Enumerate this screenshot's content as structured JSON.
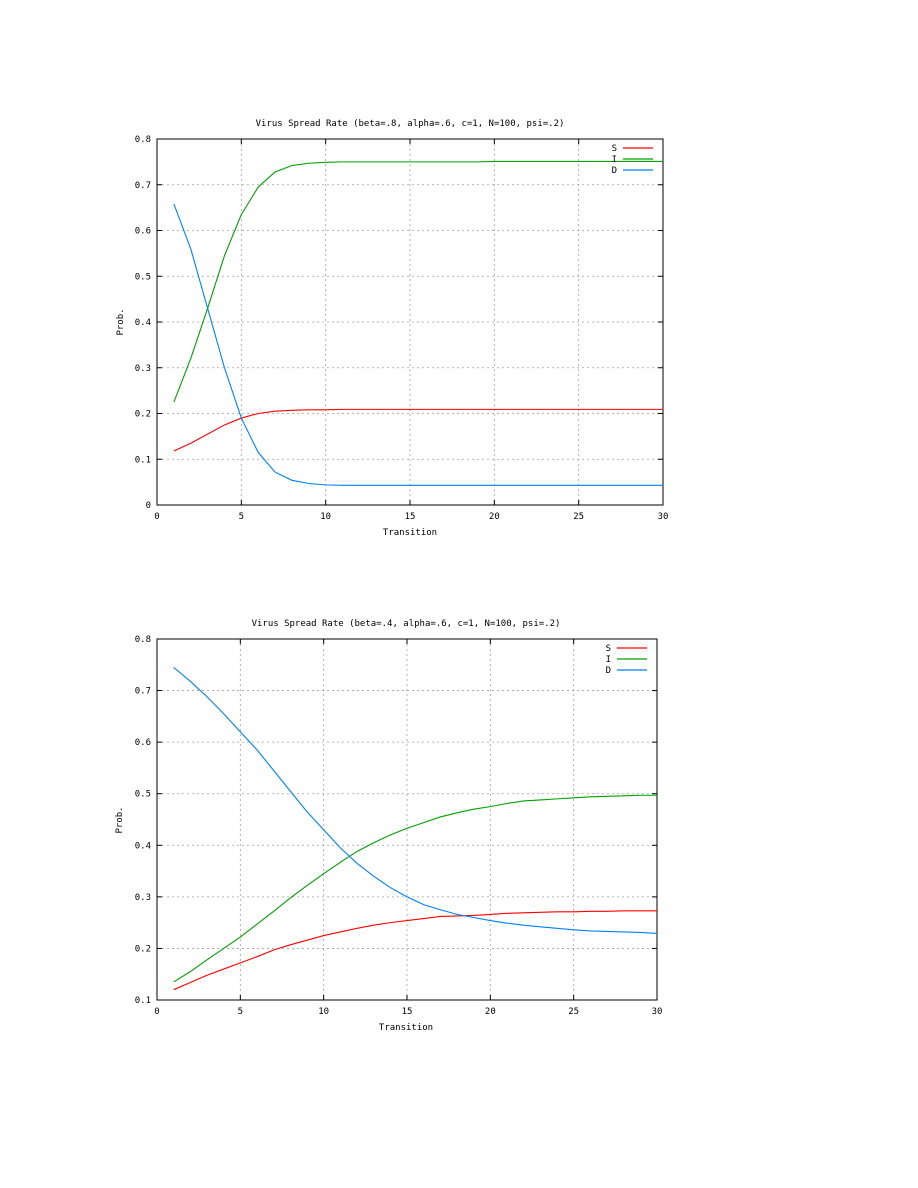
{
  "chart_data": [
    {
      "type": "line",
      "title": "Virus Spread Rate (beta=.8, alpha=.6, c=1, N=100, psi=.2)",
      "xlabel": "Transition",
      "ylabel": "Prob.",
      "xlim": [
        0,
        30
      ],
      "ylim": [
        0,
        0.8
      ],
      "xticks": [
        0,
        5,
        10,
        15,
        20,
        25,
        30
      ],
      "yticks": [
        0,
        0.1,
        0.2,
        0.3,
        0.4,
        0.5,
        0.6,
        0.7,
        0.8
      ],
      "grid": true,
      "legend_position": "top-right",
      "x": [
        1,
        2,
        3,
        4,
        5,
        6,
        7,
        8,
        9,
        10,
        11,
        12,
        13,
        14,
        15,
        16,
        17,
        18,
        19,
        20,
        21,
        22,
        23,
        24,
        25,
        26,
        27,
        28,
        29,
        30
      ],
      "series": [
        {
          "name": "S",
          "color": "#ff0000",
          "values": [
            0.118,
            0.135,
            0.155,
            0.175,
            0.19,
            0.2,
            0.205,
            0.207,
            0.208,
            0.208,
            0.209,
            0.209,
            0.209,
            0.209,
            0.209,
            0.209,
            0.209,
            0.209,
            0.209,
            0.209,
            0.209,
            0.209,
            0.209,
            0.209,
            0.209,
            0.209,
            0.209,
            0.209,
            0.209,
            0.209
          ]
        },
        {
          "name": "I",
          "color": "#00a000",
          "values": [
            0.225,
            0.32,
            0.43,
            0.545,
            0.635,
            0.695,
            0.728,
            0.742,
            0.747,
            0.749,
            0.75,
            0.75,
            0.75,
            0.75,
            0.75,
            0.75,
            0.75,
            0.75,
            0.75,
            0.751,
            0.751,
            0.751,
            0.751,
            0.751,
            0.751,
            0.751,
            0.751,
            0.751,
            0.751,
            0.751
          ]
        },
        {
          "name": "D",
          "color": "#0080ff",
          "values": [
            0.658,
            0.56,
            0.43,
            0.3,
            0.19,
            0.115,
            0.072,
            0.054,
            0.047,
            0.044,
            0.043,
            0.043,
            0.043,
            0.043,
            0.043,
            0.043,
            0.043,
            0.043,
            0.043,
            0.043,
            0.043,
            0.043,
            0.043,
            0.043,
            0.043,
            0.043,
            0.043,
            0.043,
            0.043,
            0.043
          ]
        }
      ]
    },
    {
      "type": "line",
      "title": "Virus Spread Rate (beta=.4, alpha=.6, c=1, N=100, psi=.2)",
      "xlabel": "Transition",
      "ylabel": "Prob.",
      "xlim": [
        0,
        30
      ],
      "ylim": [
        0.1,
        0.8
      ],
      "xticks": [
        0,
        5,
        10,
        15,
        20,
        25,
        30
      ],
      "yticks": [
        0.1,
        0.2,
        0.3,
        0.4,
        0.5,
        0.6,
        0.7,
        0.8
      ],
      "grid": true,
      "legend_position": "top-right",
      "x": [
        1,
        2,
        3,
        4,
        5,
        6,
        7,
        8,
        9,
        10,
        11,
        12,
        13,
        14,
        15,
        16,
        17,
        18,
        19,
        20,
        21,
        22,
        23,
        24,
        25,
        26,
        27,
        28,
        29,
        30
      ],
      "series": [
        {
          "name": "S",
          "color": "#ff0000",
          "values": [
            0.12,
            0.134,
            0.148,
            0.16,
            0.172,
            0.184,
            0.197,
            0.207,
            0.216,
            0.225,
            0.232,
            0.239,
            0.245,
            0.25,
            0.254,
            0.258,
            0.262,
            0.263,
            0.264,
            0.266,
            0.268,
            0.269,
            0.27,
            0.271,
            0.271,
            0.272,
            0.272,
            0.273,
            0.273,
            0.273
          ]
        },
        {
          "name": "I",
          "color": "#00a000",
          "values": [
            0.135,
            0.155,
            0.178,
            0.2,
            0.222,
            0.247,
            0.272,
            0.298,
            0.322,
            0.345,
            0.367,
            0.388,
            0.405,
            0.42,
            0.433,
            0.444,
            0.455,
            0.463,
            0.47,
            0.475,
            0.481,
            0.486,
            0.488,
            0.49,
            0.492,
            0.494,
            0.495,
            0.496,
            0.497,
            0.497
          ]
        },
        {
          "name": "D",
          "color": "#0080ff",
          "values": [
            0.745,
            0.718,
            0.688,
            0.655,
            0.62,
            0.585,
            0.545,
            0.505,
            0.465,
            0.43,
            0.395,
            0.365,
            0.34,
            0.318,
            0.3,
            0.285,
            0.275,
            0.266,
            0.26,
            0.254,
            0.249,
            0.245,
            0.242,
            0.239,
            0.236,
            0.234,
            0.233,
            0.232,
            0.231,
            0.229
          ]
        }
      ]
    }
  ]
}
